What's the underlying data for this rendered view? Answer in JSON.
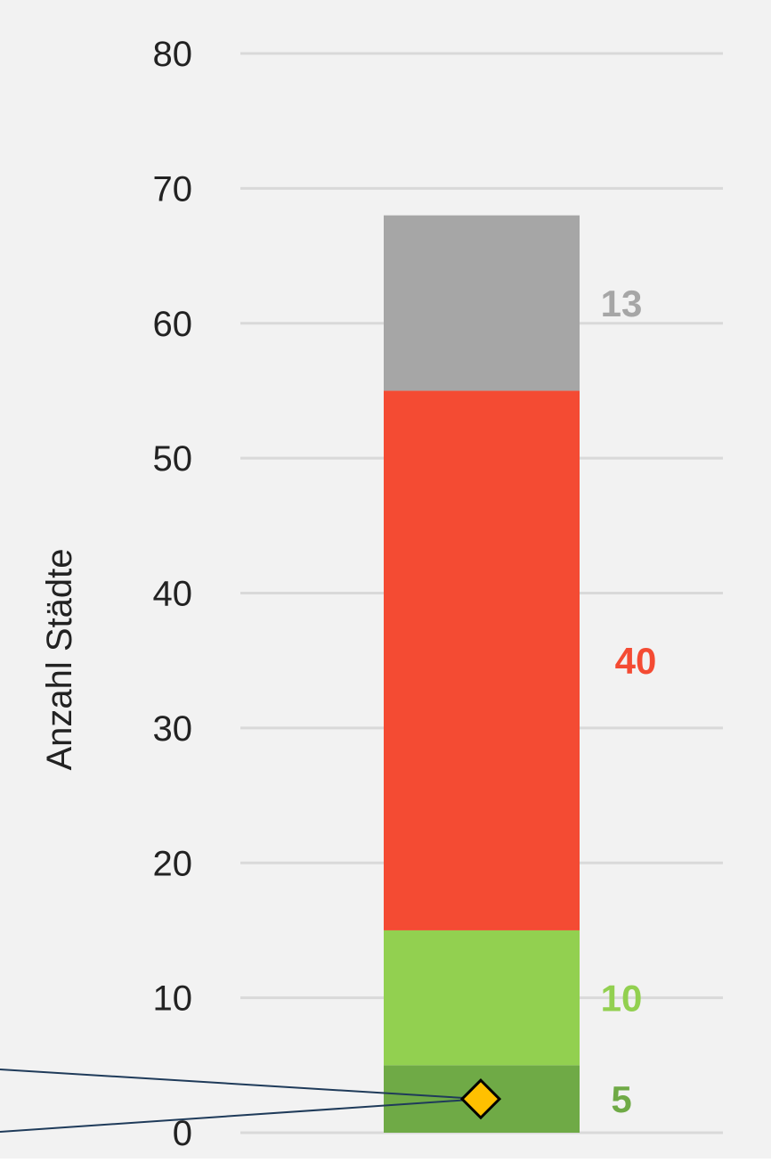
{
  "chart_data": {
    "type": "bar",
    "stacked": true,
    "ylabel": "Anzahl Städte",
    "ylim": [
      0,
      80
    ],
    "yticks": [
      0,
      10,
      20,
      30,
      40,
      50,
      60,
      70,
      80
    ],
    "grid": true,
    "series": [
      {
        "value": 5,
        "label": "5",
        "color": "#6FAA46",
        "label_color": "#6FAA46"
      },
      {
        "value": 10,
        "label": "10",
        "color": "#92D050",
        "label_color": "#92D050"
      },
      {
        "value": 40,
        "label": "40",
        "color": "#F44B33",
        "label_color": "#F44B33"
      },
      {
        "value": 13,
        "label": "13",
        "color": "#A6A6A6",
        "label_color": "#A6A6A6"
      }
    ],
    "marker": {
      "shape": "diamond",
      "value": 2.5,
      "fill": "#FFC000",
      "stroke": "#000000"
    },
    "annotation_line_color": "#1F3B5A",
    "background": "#F2F2F2",
    "gridline_color": "#D9D9D9"
  }
}
